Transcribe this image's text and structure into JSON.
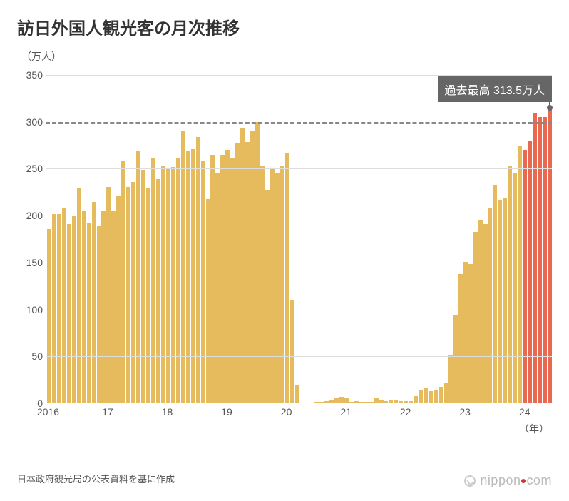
{
  "title": "訪日外国人観光客の月次推移",
  "y_unit_label": "（万人）",
  "x_unit_label": "（年）",
  "source_note": "日本政府観光局の公表資料を基に作成",
  "logo_text_a": "nippon",
  "logo_text_b": "com",
  "annotation": {
    "text": "過去最高 313.5万人",
    "value": 313.5,
    "bar_index": 101
  },
  "chart": {
    "type": "bar",
    "ylim": [
      0,
      350
    ],
    "ytick_step": 50,
    "dashed_reference": 300,
    "background_color": "#ffffff",
    "grid_color": "#dddddd",
    "axis_color": "#888888",
    "tick_font_size": 14,
    "bar_color_default": "#e6bb5e",
    "bar_color_highlight": "#e86850",
    "highlight_start_index": 96,
    "x_axis": {
      "years": [
        "2016",
        "17",
        "18",
        "19",
        "20",
        "21",
        "22",
        "23",
        "24"
      ],
      "months_per_year": 12,
      "last_year_months": 6
    },
    "values": [
      185,
      201,
      201,
      208,
      190,
      199,
      229,
      205,
      192,
      214,
      188,
      205,
      230,
      204,
      220,
      258,
      230,
      235,
      268,
      248,
      228,
      260,
      238,
      252,
      250,
      251,
      260,
      290,
      268,
      270,
      283,
      258,
      217,
      264,
      245,
      264,
      269,
      260,
      276,
      293,
      278,
      289,
      299,
      252,
      227,
      250,
      245,
      253,
      266,
      109,
      19,
      0.3,
      0.2,
      0.3,
      0.4,
      0.9,
      1.4,
      2.7,
      5.7,
      5.9,
      4.7,
      0.7,
      1.2,
      1.1,
      1.0,
      0.9,
      5.1,
      2.6,
      1.8,
      2.2,
      2.1,
      1.2,
      1.8,
      1.7,
      6.6,
      14,
      15,
      12,
      14,
      17,
      21,
      50,
      93,
      137,
      150,
      148,
      182,
      195,
      190,
      207,
      232,
      216,
      218,
      252,
      244,
      273,
      269,
      279,
      308,
      304,
      304,
      313.5
    ]
  }
}
